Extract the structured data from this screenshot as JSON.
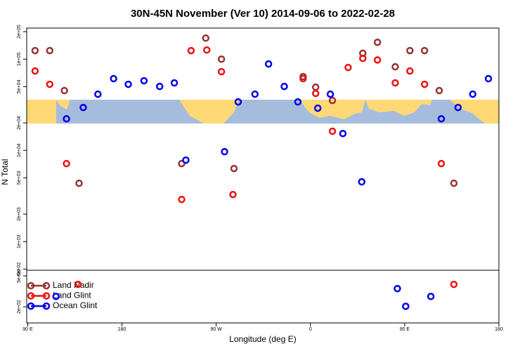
{
  "chart_data": [
    {
      "type": "scatter",
      "title": "30N-45N November (Ver 10)   2014-09-06 to 2022-02-28",
      "ylabel": "N Total",
      "log": true,
      "xlim": [
        89,
        540
      ],
      "ylim": [
        485,
        219000
      ],
      "yticks": [
        {
          "value": 200000,
          "label": "2e+05"
        },
        {
          "value": 100000,
          "label": "1e+05"
        },
        {
          "value": 50000,
          "label": "5e+04"
        },
        {
          "value": 20000,
          "label": "2e+04"
        },
        {
          "value": 10000,
          "label": "1e+04"
        },
        {
          "value": 5000,
          "label": "5e+03"
        },
        {
          "value": 2000,
          "label": "2e+03"
        },
        {
          "value": 1000,
          "label": "1e+03"
        },
        {
          "value": 500,
          "label": "5e+02"
        }
      ],
      "series": [
        {
          "color": "#993333",
          "x": [
            97,
            111,
            125,
            139,
            237,
            260,
            275,
            287,
            353,
            365,
            381,
            410,
            424,
            441,
            455,
            469,
            483,
            497
          ],
          "values": [
            124000,
            124000,
            45200,
            4360,
            7160,
            170000,
            100000,
            6320,
            64400,
            49300,
            35200,
            116000,
            153000,
            82400,
            124000,
            124000,
            45200,
            4360
          ]
        },
        {
          "color": "#ee1111",
          "x": [
            97,
            111,
            127,
            246,
            237,
            261,
            275,
            286,
            353,
            365,
            381,
            396,
            410,
            424,
            441,
            455,
            469,
            485
          ],
          "values": [
            74100,
            53000,
            7160,
            124000,
            2900,
            126000,
            72900,
            3280,
            61100,
            42100,
            16200,
            81100,
            102000,
            98000,
            54900,
            74100,
            53000,
            7160
          ]
        },
        {
          "color": "#0000ee",
          "x": [
            127,
            143,
            157,
            172,
            186,
            201,
            216,
            230,
            241,
            278,
            291,
            307,
            320,
            335,
            348,
            367,
            379,
            391,
            409,
            485,
            501,
            515,
            530
          ],
          "values": [
            22200,
            29500,
            41300,
            61100,
            53000,
            57900,
            50200,
            54900,
            7820,
            9680,
            34000,
            41300,
            88500,
            50200,
            34000,
            29000,
            41300,
            15300,
            4520,
            22200,
            29500,
            41300,
            61100
          ]
        }
      ]
    },
    {
      "type": "scatter",
      "xlabel": "Longitude (deg E)",
      "log": true,
      "xlim": [
        89,
        540
      ],
      "ylim": [
        124,
        591
      ],
      "xticks": [
        {
          "value": 90,
          "label": "90 E"
        },
        {
          "value": 180,
          "label": "180"
        },
        {
          "value": 270,
          "label": "90 W"
        },
        {
          "value": 360,
          "label": "0"
        },
        {
          "value": 450,
          "label": "90 E"
        },
        {
          "value": 540,
          "label": "180"
        }
      ],
      "yticks": [
        {
          "value": 500,
          "label": "5e+02"
        },
        {
          "value": 200,
          "label": "2e+02"
        }
      ],
      "series": [
        {
          "name": "Land Nadir",
          "color": "#993333",
          "x": [],
          "values": []
        },
        {
          "name": "Land Glint",
          "color": "#ee1111",
          "x": [
            138,
            497
          ],
          "values": [
            389,
            389
          ]
        },
        {
          "name": "Ocean Glint",
          "color": "#0000ee",
          "x": [
            117,
            443,
            451,
            475
          ],
          "values": [
            272,
            343,
            203,
            272
          ]
        }
      ]
    }
  ]
}
